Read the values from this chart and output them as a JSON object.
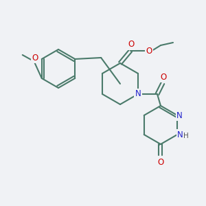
{
  "background_color": "#f0f2f5",
  "bond_color": "#4a7a6a",
  "bond_lw": 1.5,
  "atom_colors": {
    "O": "#cc0000",
    "N": "#2222cc",
    "C": "#000000",
    "H": "#555555"
  },
  "font_size": 7.5
}
